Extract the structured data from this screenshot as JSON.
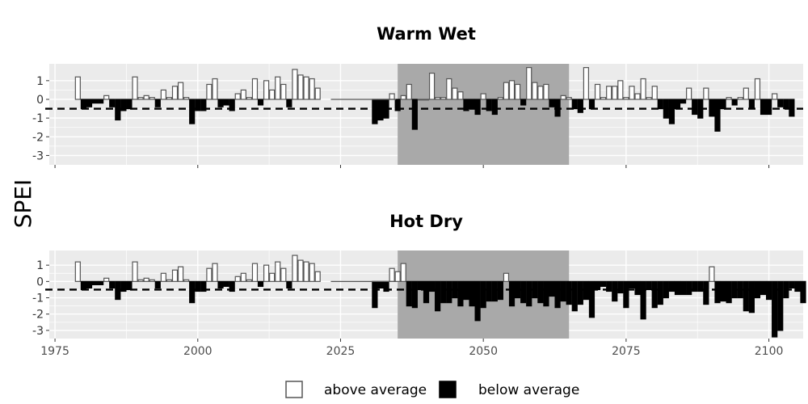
{
  "chart_data": {
    "type": "bar",
    "ylabel": "SPEI",
    "threshold": -0.5,
    "shaded_period": [
      2035,
      2065
    ],
    "xlim": [
      1974,
      2106
    ],
    "ylim": [
      -3.5,
      1.9
    ],
    "yticks": [
      1,
      0,
      -1,
      -2,
      -3
    ],
    "ytick_labels": [
      "1",
      "0",
      "-1",
      "-2",
      "-3"
    ],
    "xticks": [
      1975,
      2000,
      2025,
      2050,
      2075,
      2100
    ],
    "xtick_labels": [
      "1975",
      "2000",
      "2025",
      "2050",
      "2075",
      "2100"
    ],
    "legend": {
      "position": "bottom",
      "above": "above average",
      "below": "below average"
    },
    "colors": {
      "panel_bg": "#ebebeb",
      "grid": "#ffffff",
      "shade": "#a9a9a9",
      "above_fill": "#ffffff",
      "above_stroke": "#555555",
      "below_fill": "#000000"
    },
    "panels": [
      {
        "title": "Warm Wet",
        "start_year": 1979,
        "values": [
          1.2,
          -0.5,
          -0.4,
          -0.2,
          -0.2,
          0.2,
          -0.4,
          -1.1,
          -0.6,
          -0.5,
          1.2,
          0.1,
          0.2,
          0.1,
          -0.4,
          0.5,
          0.1,
          0.7,
          0.9,
          0.1,
          -1.3,
          -0.6,
          -0.6,
          0.8,
          1.1,
          -0.4,
          -0.3,
          -0.6,
          0.3,
          0.5,
          0.1,
          1.1,
          -0.3,
          1.0,
          0.5,
          1.2,
          0.8,
          -0.4,
          1.6,
          1.3,
          1.2,
          1.1,
          0.6,
          null,
          null,
          null,
          null,
          null,
          null,
          null,
          null,
          null,
          -1.3,
          -1.1,
          -1.0,
          0.3,
          -0.6,
          0.2,
          0.8,
          -1.6,
          0.0,
          0.0,
          1.4,
          0.1,
          0.1,
          1.1,
          0.6,
          0.4,
          -0.6,
          -0.5,
          -0.8,
          0.3,
          -0.6,
          -0.8,
          0.1,
          0.9,
          1.0,
          0.8,
          -0.3,
          1.7,
          0.9,
          0.7,
          0.8,
          -0.4,
          -0.9,
          0.2,
          0.1,
          -0.5,
          -0.7,
          1.7,
          -0.5,
          0.8,
          0.1,
          0.7,
          0.7,
          1.0,
          0.1,
          0.7,
          0.3,
          1.1,
          0.1,
          0.7,
          -0.5,
          -1.0,
          -1.3,
          -0.5,
          -0.2,
          0.6,
          -0.8,
          -1.0,
          0.6,
          -0.9,
          -1.7,
          -0.5,
          0.1,
          -0.3,
          0.1,
          0.6,
          -0.5,
          1.1,
          -0.8,
          -0.8,
          0.3,
          -0.4,
          -0.5,
          -0.9
        ]
      },
      {
        "title": "Hot Dry",
        "start_year": 1979,
        "values": [
          1.2,
          -0.5,
          -0.4,
          -0.2,
          -0.2,
          0.2,
          -0.4,
          -1.1,
          -0.6,
          -0.5,
          1.2,
          0.1,
          0.2,
          0.1,
          -0.4,
          0.5,
          0.1,
          0.7,
          0.9,
          0.1,
          -1.3,
          -0.6,
          -0.6,
          0.8,
          1.1,
          -0.4,
          -0.3,
          -0.6,
          0.3,
          0.5,
          0.1,
          1.1,
          -0.3,
          1.0,
          0.5,
          1.2,
          0.8,
          -0.4,
          1.6,
          1.3,
          1.2,
          1.1,
          0.6,
          null,
          null,
          null,
          null,
          null,
          null,
          null,
          null,
          null,
          -1.6,
          -0.4,
          -0.6,
          0.8,
          0.6,
          1.1,
          -1.5,
          -1.6,
          -0.5,
          -1.3,
          -0.6,
          -1.8,
          -1.3,
          -1.3,
          -1.0,
          -1.5,
          -1.1,
          -1.5,
          -2.4,
          -1.6,
          -1.2,
          -1.2,
          -1.1,
          0.5,
          -1.5,
          -1.0,
          -1.3,
          -1.5,
          -1.0,
          -1.3,
          -1.5,
          -0.9,
          -1.6,
          -1.2,
          -1.4,
          -1.8,
          -1.4,
          -1.1,
          -2.2,
          -0.5,
          -0.3,
          -0.6,
          -1.2,
          -0.7,
          -1.6,
          -0.4,
          -0.8,
          -2.3,
          -0.5,
          -1.6,
          -1.4,
          -1.0,
          -0.6,
          -0.8,
          -0.8,
          -0.8,
          -0.6,
          -0.6,
          -1.4,
          0.9,
          -1.3,
          -1.2,
          -1.3,
          -1.0,
          -1.0,
          -1.8,
          -1.9,
          -1.0,
          -0.8,
          -1.1,
          -3.4,
          -3.0,
          -1.0,
          -0.4,
          -0.6,
          -1.3
        ]
      }
    ]
  }
}
